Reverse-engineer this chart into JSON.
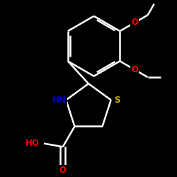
{
  "background": "#000000",
  "bond_color": "#ffffff",
  "bond_width": 1.8,
  "atom_colors": {
    "O": "#ff0000",
    "N": "#0000cd",
    "S": "#ccaa00",
    "C": "#ffffff",
    "H": "#ffffff"
  },
  "font_size": 8.5,
  "fig_size": [
    2.5,
    2.5
  ],
  "dpi": 100
}
